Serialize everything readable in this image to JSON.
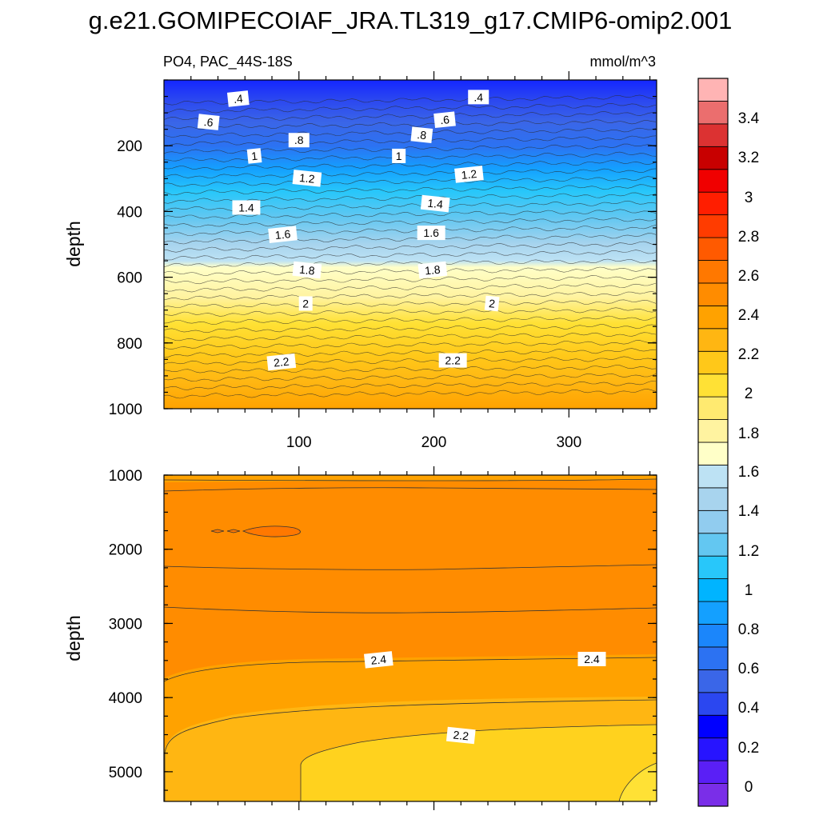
{
  "chart_data": {
    "type": "heatmap",
    "title": "g.e21.GOMIPECOIAF_JRA.TL319_g17.CMIP6-omip2.001",
    "left_string": "PO4, PAC_44S-18S",
    "right_string": "mmol/m^3",
    "colorbar": {
      "levels": [
        0,
        0.2,
        0.4,
        0.6,
        0.8,
        1,
        1.2,
        1.4,
        1.6,
        1.8,
        2,
        2.2,
        2.4,
        2.6,
        2.8,
        3,
        3.2,
        3.4
      ],
      "labels": [
        "0",
        "0.2",
        "0.4",
        "0.6",
        "0.8",
        "1",
        "1.2",
        "1.4",
        "1.6",
        "1.8",
        "2",
        "2.2",
        "2.4",
        "2.6",
        "2.8",
        "3",
        "3.2",
        "3.4"
      ],
      "colors": [
        "#7a2ee8",
        "#5a1ff6",
        "#2714ff",
        "#0000ff",
        "#2b47f0",
        "#3a66e8",
        "#2c72f2",
        "#1b86fb",
        "#14a0ff",
        "#00b4ff",
        "#28c7fa",
        "#63c7f1",
        "#91ccef",
        "#a8d4ee",
        "#bde2f4",
        "#ffffc8",
        "#fff3a0",
        "#ffea70",
        "#ffe135",
        "#ffc819",
        "#ffb612",
        "#ffa200",
        "#ff8c00",
        "#ff7800",
        "#ff5a00",
        "#ff3c00",
        "#ff1e00",
        "#f00000",
        "#c80000",
        "#dc3232",
        "#eb6e6e",
        "#ffb4b4"
      ]
    },
    "panels": [
      {
        "name": "upper",
        "xlim": [
          0,
          365
        ],
        "ylim": [
          1000,
          0
        ],
        "ylabel": "depth",
        "xticks": [
          100,
          200,
          300
        ],
        "xtick_labels": [
          "100",
          "200",
          "300"
        ],
        "yticks": [
          200,
          400,
          600,
          800,
          1000
        ],
        "ytick_labels": [
          "200",
          "400",
          "600",
          "800",
          "1000"
        ],
        "contour_labels": [
          {
            "text": ".4",
            "x": 55,
            "depth": 57
          },
          {
            "text": ".4",
            "x": 233,
            "depth": 52
          },
          {
            "text": ".6",
            "x": 33,
            "depth": 128
          },
          {
            "text": ".6",
            "x": 208,
            "depth": 121
          },
          {
            "text": ".8",
            "x": 100,
            "depth": 183
          },
          {
            "text": ".8",
            "x": 191,
            "depth": 167
          },
          {
            "text": "1",
            "x": 67,
            "depth": 231
          },
          {
            "text": "1",
            "x": 174,
            "depth": 231
          },
          {
            "text": "1.2",
            "x": 106,
            "depth": 299
          },
          {
            "text": "1.2",
            "x": 226,
            "depth": 287
          },
          {
            "text": "1.4",
            "x": 61,
            "depth": 388
          },
          {
            "text": "1.4",
            "x": 201,
            "depth": 376
          },
          {
            "text": "1.6",
            "x": 88,
            "depth": 470
          },
          {
            "text": "1.6",
            "x": 198,
            "depth": 465
          },
          {
            "text": "1.8",
            "x": 106,
            "depth": 578
          },
          {
            "text": "1.8",
            "x": 199,
            "depth": 578
          },
          {
            "text": "2",
            "x": 105,
            "depth": 680
          },
          {
            "text": "2",
            "x": 243,
            "depth": 680
          },
          {
            "text": "2.2",
            "x": 87,
            "depth": 858
          },
          {
            "text": "2.2",
            "x": 214,
            "depth": 853
          }
        ]
      },
      {
        "name": "lower",
        "xlim": [
          0,
          365
        ],
        "ylim": [
          5400,
          1000
        ],
        "ylabel": "depth",
        "yticks": [
          1000,
          2000,
          3000,
          4000,
          5000
        ],
        "ytick_labels": [
          "1000",
          "2000",
          "3000",
          "4000",
          "5000"
        ],
        "contour_labels": [
          {
            "text": "2.4",
            "x": 159,
            "depth": 3490
          },
          {
            "text": "2.4",
            "x": 317,
            "depth": 3480
          },
          {
            "text": "2.2",
            "x": 220,
            "depth": 4510
          }
        ]
      }
    ]
  }
}
